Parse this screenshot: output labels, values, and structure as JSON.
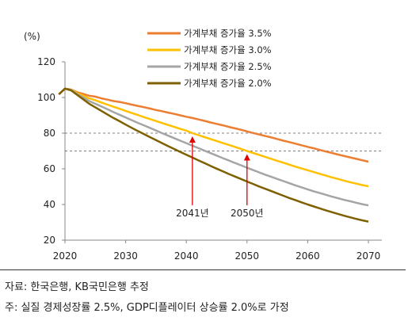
{
  "chart_data": {
    "type": "line",
    "title": "",
    "y_unit": "(%)",
    "xlabel": "",
    "ylabel": "",
    "xlim": [
      2020,
      2070
    ],
    "ylim": [
      20,
      120
    ],
    "x_ticks": [
      "2020",
      "2030",
      "2040",
      "2050",
      "2060",
      "2070"
    ],
    "y_ticks": [
      "20",
      "40",
      "60",
      "80",
      "100",
      "120"
    ],
    "grid": false,
    "legend_position": "top-right",
    "reference_lines": [
      {
        "y": 80,
        "style": "dashed"
      },
      {
        "y": 70,
        "style": "dashed"
      }
    ],
    "annotations": [
      {
        "label": "2041년",
        "x": 2041,
        "arrow_to_y": 80
      },
      {
        "label": "2050년",
        "x": 2050,
        "arrow_to_y": 70
      }
    ],
    "x": [
      2019,
      2020,
      2021,
      2022,
      2023,
      2024,
      2025,
      2026,
      2027,
      2028,
      2029,
      2030,
      2031,
      2032,
      2033,
      2034,
      2035,
      2036,
      2037,
      2038,
      2039,
      2040,
      2041,
      2042,
      2043,
      2044,
      2045,
      2046,
      2047,
      2048,
      2049,
      2050,
      2051,
      2052,
      2053,
      2054,
      2055,
      2056,
      2057,
      2058,
      2059,
      2060,
      2061,
      2062,
      2063,
      2064,
      2065,
      2066,
      2067,
      2068,
      2069,
      2070
    ],
    "series": [
      {
        "name": "가계부채 증가율 3.5%",
        "color": "#ED7D31",
        "values": [
          101.8,
          105,
          104.5,
          103,
          102,
          101,
          100.5,
          99.5,
          98.8,
          98,
          97.5,
          96.8,
          96,
          95.3,
          94.6,
          93.8,
          93,
          92.3,
          91.5,
          90.8,
          90,
          89.2,
          88.5,
          87.7,
          86.9,
          86,
          85.2,
          84.4,
          83.5,
          82.7,
          81.9,
          81,
          80.1,
          79.3,
          78.4,
          77.6,
          76.7,
          75.8,
          75,
          74.1,
          73.2,
          72.3,
          71.5,
          70.6,
          69.7,
          68.9,
          68,
          67.2,
          66.4,
          65.6,
          64.8,
          64
        ]
      },
      {
        "name": "가계부채 증가율 3.0%",
        "color": "#FFC000",
        "values": [
          101.8,
          105,
          104.5,
          102.5,
          101,
          99.5,
          98.5,
          97.2,
          96,
          94.8,
          93.7,
          92.5,
          91.3,
          90.2,
          89,
          87.9,
          86.8,
          85.7,
          84.6,
          83.5,
          82.4,
          81.4,
          80,
          78.9,
          77.8,
          76.7,
          75.6,
          74.5,
          73.4,
          72.3,
          71.2,
          70,
          68.9,
          67.8,
          66.7,
          65.6,
          64.5,
          63.4,
          62.3,
          61.2,
          60.2,
          59.2,
          58.2,
          57.2,
          56.2,
          55.2,
          54.3,
          53.4,
          52.5,
          51.7,
          50.9,
          50.2
        ]
      },
      {
        "name": "가계부채 증가율 2.5%",
        "color": "#A5A5A5",
        "values": [
          101.8,
          105,
          104.3,
          102,
          100,
          98,
          96.5,
          95,
          93.4,
          91.8,
          90.3,
          88.8,
          87.3,
          85.8,
          84.4,
          83,
          81.5,
          80,
          78.6,
          77.2,
          75.8,
          74.4,
          73,
          71.6,
          70.2,
          68.8,
          67.4,
          66,
          64.7,
          63.3,
          62,
          60.6,
          59.3,
          58,
          56.7,
          55.5,
          54.3,
          53.1,
          51.9,
          50.7,
          49.6,
          48.5,
          47.4,
          46.4,
          45.4,
          44.4,
          43.5,
          42.6,
          41.8,
          41,
          40.2,
          39.5
        ]
      },
      {
        "name": "가계부채 증가율 2.0%",
        "color": "#7F6000",
        "values": [
          101.8,
          105,
          104,
          101.5,
          99,
          96.5,
          94.5,
          92.5,
          90.5,
          88.5,
          86.7,
          84.8,
          83,
          81.2,
          79.5,
          77.8,
          76.1,
          74.4,
          72.7,
          71.1,
          69.5,
          67.9,
          66.3,
          64.7,
          63.2,
          61.6,
          60.1,
          58.6,
          57.1,
          55.7,
          54.3,
          52.9,
          51.5,
          50.1,
          48.8,
          47.5,
          46.2,
          44.9,
          43.6,
          42.4,
          41.2,
          40,
          38.9,
          37.8,
          36.7,
          35.7,
          34.7,
          33.7,
          32.8,
          31.9,
          31.1,
          30.4
        ]
      }
    ]
  },
  "source_note": "자료: 한국은행, KB국민은행 추정",
  "footnote": "주:  실질 경제성장률 2.5%, GDP디플레이터 상승률 2.0%로 가정"
}
